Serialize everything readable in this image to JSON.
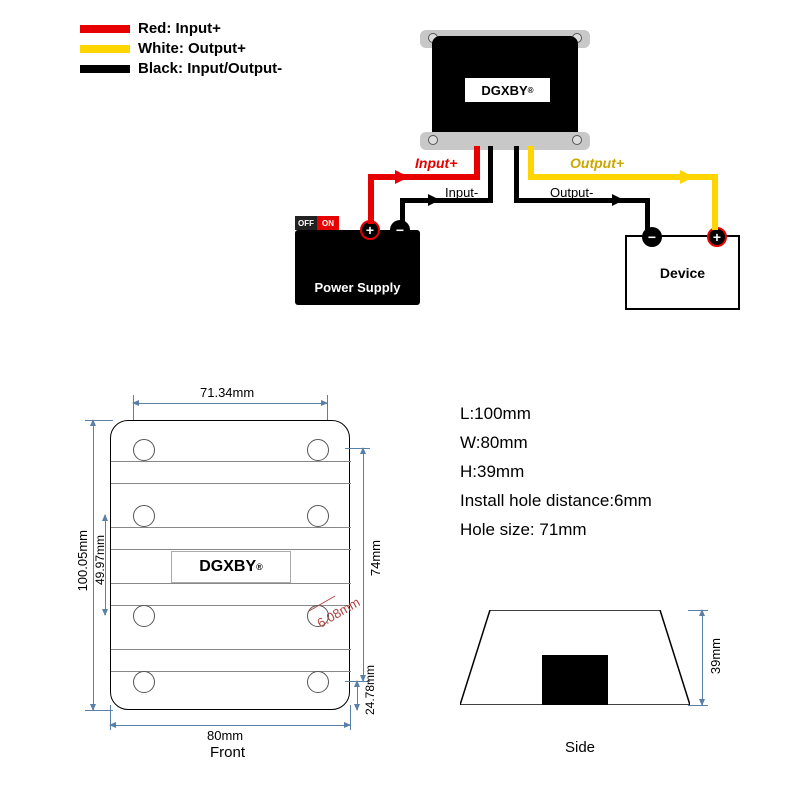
{
  "legend": {
    "items": [
      {
        "color": "#e60000",
        "label": "Red: Input+"
      },
      {
        "color": "#ffd500",
        "label": "White: Output+"
      },
      {
        "color": "#000000",
        "label": "Black: Input/Output-"
      }
    ]
  },
  "wiring": {
    "brand": "DGXBY",
    "input_plus": "Input+",
    "input_minus": "Input-",
    "output_plus": "Output+",
    "output_minus": "Output-",
    "psu_label": "Power Supply",
    "psu_off": "OFF",
    "psu_on": "ON",
    "device_label": "Device",
    "colors": {
      "red": "#e60000",
      "yellow": "#ffd500",
      "black": "#000000",
      "switch_off": "#222222",
      "switch_on": "#e60000"
    }
  },
  "front": {
    "brand": "DGXBY",
    "dim_top": "71.34mm",
    "dim_bottom": "80mm",
    "dim_left_outer": "100.05mm",
    "dim_left_inner": "49.97mm",
    "dim_right_74": "74mm",
    "dim_right_608": "6.08mm",
    "dim_right_2478": "24.78mm",
    "caption": "Front",
    "dim_color": "#5a7fa8",
    "hole_positions": [
      [
        22,
        18
      ],
      [
        196,
        18
      ],
      [
        22,
        84
      ],
      [
        196,
        84
      ],
      [
        22,
        184
      ],
      [
        196,
        184
      ],
      [
        22,
        250
      ],
      [
        196,
        250
      ]
    ],
    "hlines_y": [
      40,
      62,
      106,
      128,
      162,
      184,
      228,
      250
    ]
  },
  "specs": {
    "lines": [
      "L:100mm",
      "W:80mm",
      "H:39mm",
      "Install hole distance:6mm",
      "Hole size: 71mm"
    ]
  },
  "side": {
    "dim_h": "39mm",
    "caption": "Side",
    "dim_color": "#5a7fa8"
  }
}
